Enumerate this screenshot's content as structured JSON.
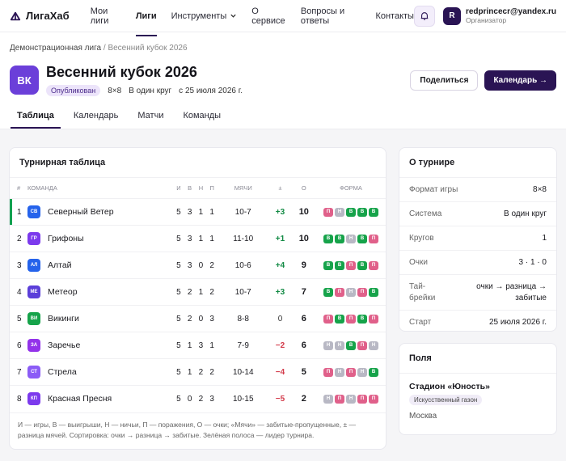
{
  "brand": {
    "name": "ЛигаХаб"
  },
  "nav": {
    "items": [
      {
        "label": "Мои лиги",
        "active": false
      },
      {
        "label": "Лиги",
        "active": true
      },
      {
        "label": "Инструменты",
        "active": false,
        "dropdown": true
      },
      {
        "label": "О сервисе",
        "active": false
      },
      {
        "label": "Вопросы и ответы",
        "active": false
      },
      {
        "label": "Контакты",
        "active": false
      }
    ]
  },
  "user": {
    "initial": "R",
    "email": "redprincecr@yandex.ru",
    "role": "Организатор"
  },
  "breadcrumb": {
    "parent": "Демонстрационная лига",
    "separator": "/",
    "current": "Весенний кубок 2026"
  },
  "league": {
    "logo_text": "ВК",
    "title": "Весенний кубок 2026",
    "status": "Опубликован",
    "format": "8×8",
    "system": "В один круг",
    "start": "с 25 июля 2026 г."
  },
  "actions": {
    "share": "Поделиться",
    "calendar": "Календарь →"
  },
  "tabs": [
    {
      "label": "Таблица",
      "active": true
    },
    {
      "label": "Календарь",
      "active": false
    },
    {
      "label": "Матчи",
      "active": false
    },
    {
      "label": "Команды",
      "active": false
    }
  ],
  "standings": {
    "title": "Турнирная таблица",
    "columns": {
      "rank": "#",
      "team": "КОМАНДА",
      "played": "И",
      "wins": "В",
      "draws": "Н",
      "losses": "П",
      "goals": "МЯЧИ",
      "diff": "±",
      "points": "О",
      "form": "ФОРМА"
    },
    "rows": [
      {
        "rank": "1",
        "abbr": "СВ",
        "color": "#2563eb",
        "team": "Северный Ветер",
        "played": "5",
        "wins": "3",
        "draws": "1",
        "losses": "1",
        "goals": "10-7",
        "diff": "+3",
        "points": "10",
        "form": [
          "П",
          "Н",
          "В",
          "В",
          "В"
        ],
        "leader": true
      },
      {
        "rank": "2",
        "abbr": "ГР",
        "color": "#7c3aed",
        "team": "Грифоны",
        "played": "5",
        "wins": "3",
        "draws": "1",
        "losses": "1",
        "goals": "11-10",
        "diff": "+1",
        "points": "10",
        "form": [
          "В",
          "В",
          "Н",
          "В",
          "П"
        ]
      },
      {
        "rank": "3",
        "abbr": "АЛ",
        "color": "#2563eb",
        "team": "Алтай",
        "played": "5",
        "wins": "3",
        "draws": "0",
        "losses": "2",
        "goals": "10-6",
        "diff": "+4",
        "points": "9",
        "form": [
          "В",
          "В",
          "П",
          "В",
          "П"
        ]
      },
      {
        "rank": "4",
        "abbr": "МЕ",
        "color": "#5b3fd9",
        "team": "Метеор",
        "played": "5",
        "wins": "2",
        "draws": "1",
        "losses": "2",
        "goals": "10-7",
        "diff": "+3",
        "points": "7",
        "form": [
          "В",
          "П",
          "Н",
          "П",
          "В"
        ]
      },
      {
        "rank": "5",
        "abbr": "ВИ",
        "color": "#16a34a",
        "team": "Викинги",
        "played": "5",
        "wins": "2",
        "draws": "0",
        "losses": "3",
        "goals": "8-8",
        "diff": "0",
        "points": "6",
        "form": [
          "П",
          "В",
          "П",
          "В",
          "П"
        ]
      },
      {
        "rank": "6",
        "abbr": "ЗА",
        "color": "#9333ea",
        "team": "Заречье",
        "played": "5",
        "wins": "1",
        "draws": "3",
        "losses": "1",
        "goals": "7-9",
        "diff": "−2",
        "points": "6",
        "form": [
          "Н",
          "Н",
          "В",
          "П",
          "Н"
        ]
      },
      {
        "rank": "7",
        "abbr": "СТ",
        "color": "#8b5cf6",
        "team": "Стрела",
        "played": "5",
        "wins": "1",
        "draws": "2",
        "losses": "2",
        "goals": "10-14",
        "diff": "−4",
        "points": "5",
        "form": [
          "П",
          "Н",
          "П",
          "Н",
          "В"
        ]
      },
      {
        "rank": "8",
        "abbr": "КП",
        "color": "#7c3aed",
        "team": "Красная Пресня",
        "played": "5",
        "wins": "0",
        "draws": "2",
        "losses": "3",
        "goals": "10-15",
        "diff": "−5",
        "points": "2",
        "form": [
          "Н",
          "П",
          "Н",
          "П",
          "П"
        ]
      }
    ],
    "note": "И — игры, В — выигрыши, Н — ничьи, П — поражения, О — очки; «Мячи» — забитые-пропущенные, ± — разница мячей. Сортировка: очки → разница → забитые. Зелёная полоса — лидер турнира."
  },
  "about": {
    "title": "О турнире",
    "items": [
      {
        "key": "Формат игры",
        "value": "8×8"
      },
      {
        "key": "Система",
        "value": "В один круг"
      },
      {
        "key": "Кругов",
        "value": "1"
      },
      {
        "key": "Очки",
        "value": "3 · 1 · 0"
      },
      {
        "key": "Тай-брейки",
        "value": "очки → разница → забитые"
      },
      {
        "key": "Старт",
        "value": "25 июля 2026 г."
      }
    ]
  },
  "fields": {
    "title": "Поля",
    "venue": {
      "name": "Стадион «Юность»",
      "surface": "Искусственный газон",
      "city": "Москва"
    }
  },
  "colors": {
    "accent": "#2a1454",
    "win": "#16a34a",
    "loss": "#e0608a",
    "draw": "#b8b8c4",
    "leader": "#12a150"
  }
}
